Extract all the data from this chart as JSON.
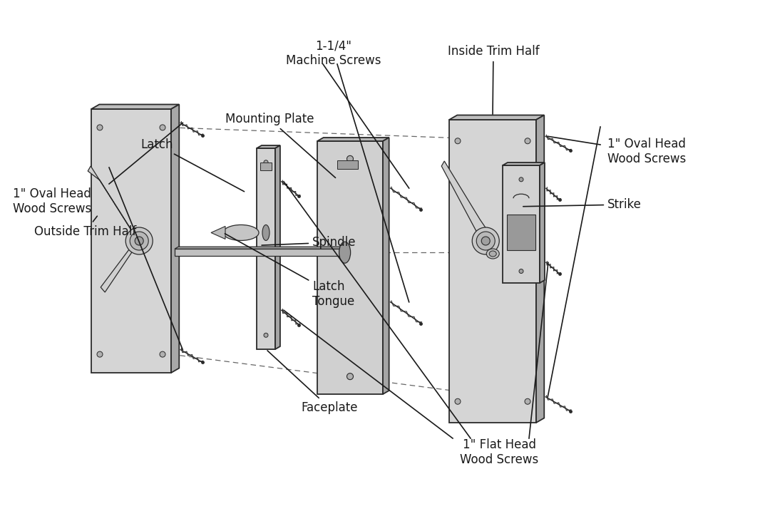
{
  "background_color": "#ffffff",
  "line_color": "#2a2a2a",
  "fill_light": "#e0e0e0",
  "fill_mid": "#c8c8c8",
  "fill_dark": "#b0b0b0",
  "text_color": "#1a1a1a",
  "labels": {
    "machine_screws": "1-1/4\"\nMachine Screws",
    "inside_trim": "Inside Trim Half",
    "mounting_plate": "Mounting Plate",
    "latch": "Latch",
    "outside_trim": "Outside Trim Half",
    "oval_head_right": "1\" Oval Head\nWood Screws",
    "oval_head_left": "1\" Oval Head\nWood Screws",
    "spindle": "Spindle",
    "latch_tongue": "Latch\nTongue",
    "faceplate": "Faceplate",
    "strike": "Strike",
    "flat_head": "1\" Flat Head\nWood Screws"
  },
  "font_size": 12.0
}
